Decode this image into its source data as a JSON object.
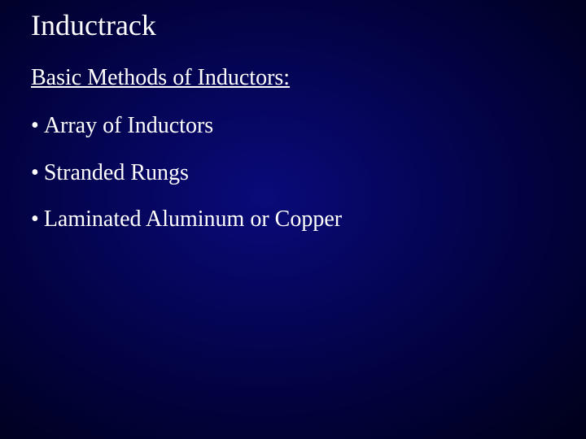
{
  "slide": {
    "title": "Inductrack",
    "subtitle": "Basic Methods of Inductors:",
    "bullets": [
      "Array of Inductors",
      "Stranded Rungs",
      "Laminated Aluminum or Copper"
    ]
  },
  "style": {
    "background_gradient_center": "#0a0a7a",
    "background_gradient_mid": "#020240",
    "background_gradient_edge": "#000012",
    "text_color": "#ffffff",
    "font_family": "Times New Roman",
    "title_fontsize": 36,
    "subtitle_fontsize": 28,
    "bullet_fontsize": 28
  }
}
